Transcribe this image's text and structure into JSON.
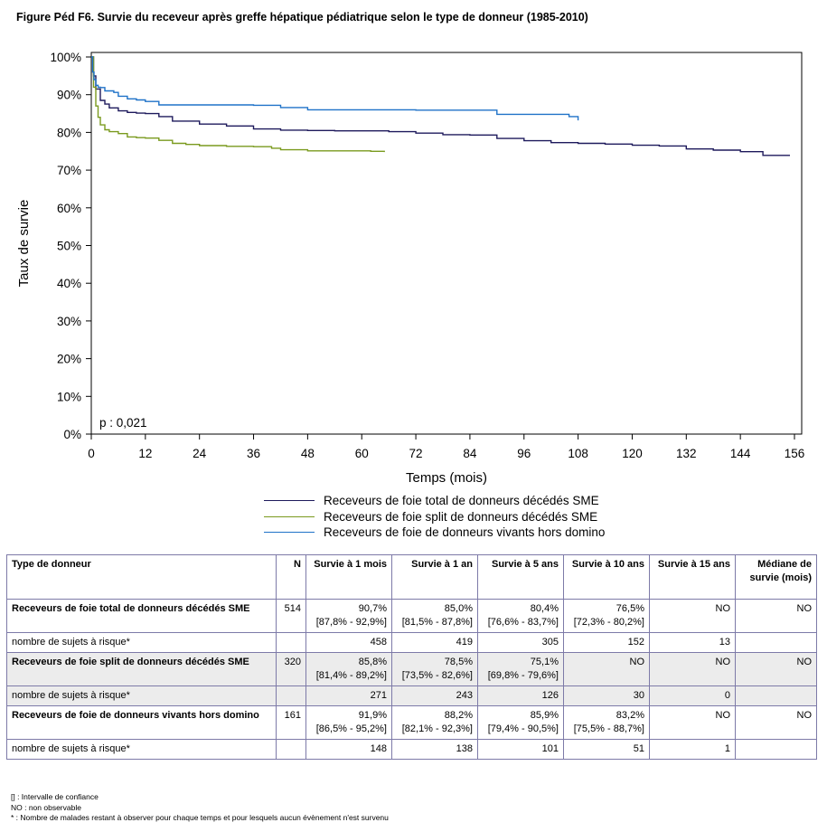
{
  "title": "Figure Péd F6. Survie du receveur après greffe hépatique pédiatrique selon le type de donneur (1985-2010)",
  "chart_data": {
    "type": "line",
    "xlabel": "Temps (mois)",
    "ylabel": "Taux de survie",
    "xlim": [
      0,
      156
    ],
    "ylim": [
      0,
      100
    ],
    "xticks": [
      "0",
      "12",
      "24",
      "36",
      "48",
      "60",
      "72",
      "84",
      "96",
      "108",
      "120",
      "132",
      "144",
      "156"
    ],
    "yticks": [
      "0%",
      "10%",
      "20%",
      "30%",
      "40%",
      "50%",
      "60%",
      "70%",
      "80%",
      "90%",
      "100%"
    ],
    "annotation": "p : 0,021",
    "grid": false,
    "legend_position": "bottom",
    "series": [
      {
        "name": "Receveurs de foie total de donneurs décédés SME",
        "color": "#1e1a5c",
        "x": [
          0,
          0.5,
          1,
          2,
          3,
          4,
          6,
          8,
          10,
          12,
          15,
          18,
          24,
          30,
          36,
          42,
          48,
          54,
          60,
          66,
          72,
          78,
          84,
          90,
          96,
          102,
          108,
          114,
          120,
          126,
          132,
          138,
          144,
          149,
          155
        ],
        "y": [
          100,
          95,
          91.5,
          88.5,
          87.5,
          86.5,
          85.7,
          85.3,
          85.1,
          85.0,
          84.2,
          83.0,
          82.2,
          81.7,
          80.9,
          80.6,
          80.5,
          80.4,
          80.4,
          80.2,
          79.8,
          79.4,
          79.3,
          78.4,
          77.8,
          77.3,
          77.1,
          76.9,
          76.6,
          76.4,
          75.6,
          75.3,
          74.9,
          73.9,
          73.9
        ]
      },
      {
        "name": "Receveurs de foie split de donneurs décédés SME",
        "color": "#7a9a1e",
        "x": [
          0,
          0.5,
          1,
          1.5,
          2,
          3,
          4,
          6,
          8,
          10,
          12,
          15,
          18,
          21,
          24,
          30,
          36,
          40,
          42,
          48,
          54,
          60,
          62,
          65
        ],
        "y": [
          100,
          92,
          87,
          84,
          82,
          80.7,
          80.2,
          79.7,
          78.8,
          78.6,
          78.5,
          77.9,
          77.1,
          76.8,
          76.5,
          76.3,
          76.2,
          75.8,
          75.4,
          75.1,
          75.1,
          75.1,
          75.0,
          74.8
        ]
      },
      {
        "name": "Receveurs de foie de donneurs vivants hors domino",
        "color": "#1f72c8",
        "x": [
          0,
          0.3,
          0.6,
          1,
          1.5,
          2,
          3,
          5,
          6,
          8,
          10,
          12,
          15,
          24,
          36,
          42,
          48,
          60,
          72,
          84,
          90,
          96,
          102,
          106,
          108
        ],
        "y": [
          100,
          96,
          94,
          92.5,
          92,
          91.9,
          91,
          90.6,
          89.6,
          88.9,
          88.6,
          88.2,
          87.3,
          87.3,
          87.2,
          86.6,
          86.0,
          86.0,
          85.9,
          85.9,
          84.8,
          84.8,
          84.8,
          84.2,
          83.2
        ]
      }
    ]
  },
  "table": {
    "headers": [
      "Type de donneur",
      "N",
      "Survie à 1 mois",
      "Survie à 1 an",
      "Survie à 5 ans",
      "Survie à 10 ans",
      "Survie à 15 ans",
      "Médiane de survie (mois)"
    ],
    "groups": [
      {
        "type": "Receveurs de foie total de donneurs décédés SME",
        "n": "514",
        "survival": [
          {
            "v": "90,7%",
            "ci": "[87,8% - 92,9%]"
          },
          {
            "v": "85,0%",
            "ci": "[81,5% - 87,8%]"
          },
          {
            "v": "80,4%",
            "ci": "[76,6% - 83,7%]"
          },
          {
            "v": "76,5%",
            "ci": "[72,3% - 80,2%]"
          },
          {
            "v": "NO",
            "ci": ""
          }
        ],
        "median": "NO",
        "risk_label": "nombre de sujets à risque*",
        "risk": [
          "458",
          "419",
          "305",
          "152",
          "13"
        ]
      },
      {
        "type": "Receveurs de foie split de donneurs décédés SME",
        "n": "320",
        "survival": [
          {
            "v": "85,8%",
            "ci": "[81,4% - 89,2%]"
          },
          {
            "v": "78,5%",
            "ci": "[73,5% - 82,6%]"
          },
          {
            "v": "75,1%",
            "ci": "[69,8% - 79,6%]"
          },
          {
            "v": "NO",
            "ci": ""
          },
          {
            "v": "NO",
            "ci": ""
          }
        ],
        "median": "NO",
        "risk_label": "nombre de sujets à risque*",
        "risk": [
          "271",
          "243",
          "126",
          "30",
          "0"
        ]
      },
      {
        "type": "Receveurs de foie de donneurs vivants hors domino",
        "n": "161",
        "survival": [
          {
            "v": "91,9%",
            "ci": "[86,5% - 95,2%]"
          },
          {
            "v": "88,2%",
            "ci": "[82,1% - 92,3%]"
          },
          {
            "v": "85,9%",
            "ci": "[79,4% - 90,5%]"
          },
          {
            "v": "83,2%",
            "ci": "[75,5% - 88,7%]"
          },
          {
            "v": "NO",
            "ci": ""
          }
        ],
        "median": "NO",
        "risk_label": "nombre de sujets à risque*",
        "risk": [
          "148",
          "138",
          "101",
          "51",
          "1"
        ]
      }
    ]
  },
  "notes": [
    "[] : Intervalle de confiance",
    "NO : non observable",
    "* : Nombre de malades restant à observer pour chaque temps et pour lesquels aucun évènement n'est survenu"
  ]
}
